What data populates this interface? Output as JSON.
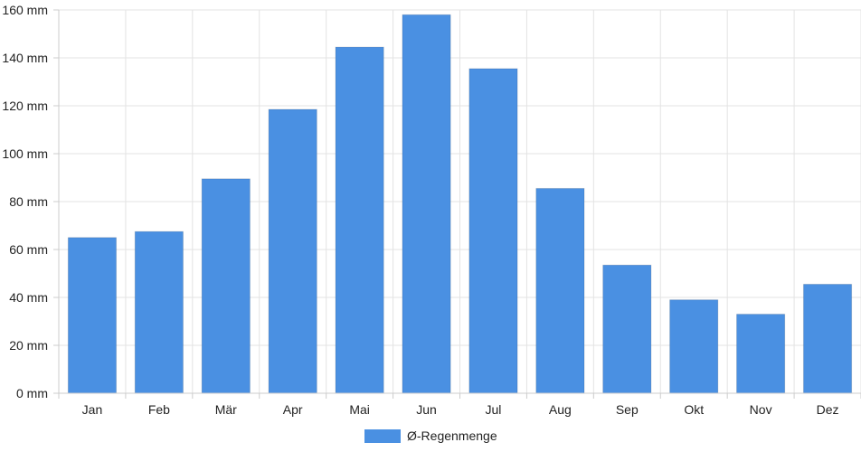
{
  "chart_data": {
    "type": "bar",
    "title": "",
    "xlabel": "",
    "ylabel": "",
    "categories": [
      "Jan",
      "Feb",
      "Mär",
      "Apr",
      "Mai",
      "Jun",
      "Jul",
      "Aug",
      "Sep",
      "Okt",
      "Nov",
      "Dez"
    ],
    "series": [
      {
        "name": "Ø-Regenmenge",
        "color": "#4a90e2",
        "values": [
          65,
          67.5,
          89.5,
          118.5,
          144.5,
          158,
          135.5,
          85.5,
          53.5,
          39,
          33,
          45.5
        ]
      }
    ],
    "ylim": [
      0,
      160
    ],
    "yticks": [
      "0 mm",
      "20 mm",
      "40 mm",
      "60 mm",
      "80 mm",
      "100 mm",
      "120 mm",
      "140 mm",
      "160 mm"
    ],
    "grid": true,
    "legend_position": "bottom-center"
  }
}
